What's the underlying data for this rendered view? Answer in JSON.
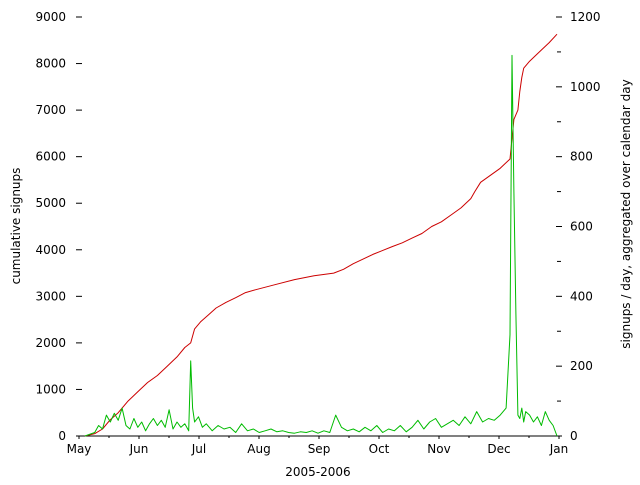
{
  "chart_data": {
    "type": "line",
    "title": "",
    "xlabel": "2005-2006",
    "ylabel_left": "cumulative signups",
    "ylabel_right": "signups / day, aggregated over calendar day",
    "x_ticks": [
      "May",
      "Jun",
      "Jul",
      "Aug",
      "Sep",
      "Oct",
      "Nov",
      "Dec",
      "Jan"
    ],
    "x_range_days": [
      0,
      245
    ],
    "y_left_ticks": [
      0,
      1000,
      2000,
      3000,
      4000,
      5000,
      6000,
      7000,
      8000,
      9000
    ],
    "y_left_range": [
      0,
      9000
    ],
    "y_right_ticks": [
      0,
      200,
      400,
      600,
      800,
      1000,
      1200
    ],
    "y_right_range": [
      0,
      1200
    ],
    "grid": false,
    "legend": "none",
    "series": [
      {
        "axis": "left",
        "color": "#cc0000",
        "x": [
          3,
          8,
          12,
          16,
          20,
          25,
          30,
          35,
          40,
          45,
          50,
          54,
          57,
          59,
          62,
          66,
          70,
          75,
          80,
          85,
          90,
          100,
          110,
          120,
          130,
          135,
          140,
          145,
          150,
          160,
          165,
          170,
          175,
          180,
          185,
          190,
          195,
          200,
          202,
          205,
          210,
          215,
          220,
          222,
          224,
          225,
          226,
          227,
          230,
          235,
          240,
          244
        ],
        "y": [
          0,
          50,
          150,
          350,
          500,
          750,
          950,
          1150,
          1300,
          1500,
          1700,
          1900,
          2000,
          2300,
          2450,
          2600,
          2750,
          2870,
          2970,
          3080,
          3140,
          3250,
          3360,
          3440,
          3500,
          3580,
          3700,
          3800,
          3900,
          4070,
          4150,
          4250,
          4350,
          4500,
          4600,
          4750,
          4900,
          5100,
          5250,
          5450,
          5600,
          5750,
          5950,
          6800,
          7000,
          7400,
          7700,
          7900,
          8050,
          8250,
          8450,
          8630
        ]
      },
      {
        "axis": "right",
        "color": "#00bb00",
        "x": [
          3,
          8,
          10,
          12,
          14,
          16,
          18,
          20,
          22,
          24,
          26,
          28,
          30,
          32,
          34,
          36,
          38,
          40,
          42,
          44,
          46,
          48,
          50,
          52,
          54,
          56,
          57,
          58,
          59,
          61,
          63,
          65,
          68,
          71,
          74,
          77,
          80,
          83,
          86,
          89,
          92,
          95,
          98,
          101,
          104,
          107,
          110,
          113,
          116,
          119,
          122,
          125,
          128,
          131,
          134,
          137,
          140,
          143,
          146,
          149,
          152,
          155,
          158,
          161,
          164,
          167,
          170,
          173,
          176,
          179,
          182,
          185,
          188,
          191,
          194,
          197,
          200,
          203,
          206,
          209,
          212,
          215,
          218,
          220,
          221,
          222,
          223,
          224,
          225,
          226,
          227,
          228,
          230,
          232,
          234,
          236,
          238,
          240,
          242,
          244
        ],
        "y": [
          0,
          10,
          30,
          20,
          60,
          40,
          65,
          45,
          80,
          30,
          20,
          50,
          25,
          40,
          15,
          35,
          50,
          30,
          45,
          25,
          75,
          20,
          40,
          25,
          35,
          15,
          215,
          80,
          40,
          55,
          25,
          35,
          15,
          30,
          20,
          25,
          10,
          35,
          15,
          20,
          10,
          15,
          20,
          12,
          15,
          10,
          8,
          12,
          10,
          15,
          8,
          15,
          10,
          60,
          25,
          15,
          20,
          12,
          25,
          15,
          30,
          10,
          20,
          15,
          30,
          12,
          25,
          45,
          20,
          40,
          50,
          25,
          35,
          45,
          30,
          55,
          35,
          70,
          40,
          50,
          45,
          60,
          80,
          290,
          1090,
          700,
          350,
          60,
          50,
          80,
          40,
          70,
          60,
          40,
          55,
          30,
          70,
          45,
          30,
          0
        ]
      }
    ]
  }
}
